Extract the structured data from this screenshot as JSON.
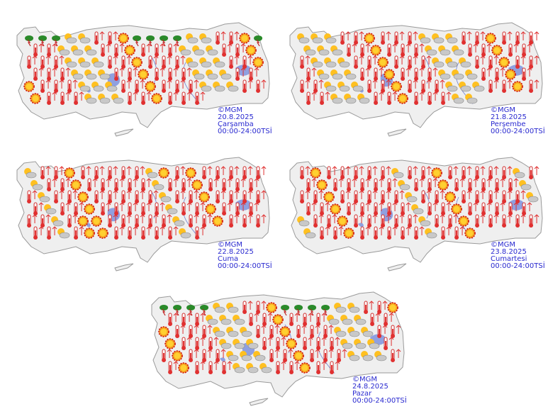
{
  "panels": [
    {
      "copyright": "©MGM",
      "date": "20.8.2025",
      "day": "Çarşamba",
      "time": "00:00-24:00TSİ"
    },
    {
      "copyright": "©MGM",
      "date": "21.8.2025",
      "day": "Perşembe",
      "time": "00:00-24:00TSİ"
    },
    {
      "copyright": "©MGM",
      "date": "22.8.2025",
      "day": "Cuma",
      "time": "00:00-24:00TSİ"
    },
    {
      "copyright": "©MGM",
      "date": "23.8.2025",
      "day": "Cumartesi",
      "time": "00:00-24:00TSİ"
    },
    {
      "copyright": "©MGM",
      "date": "24.8.2025",
      "day": "Pazar",
      "time": "00:00-24:00TSİ"
    }
  ]
}
